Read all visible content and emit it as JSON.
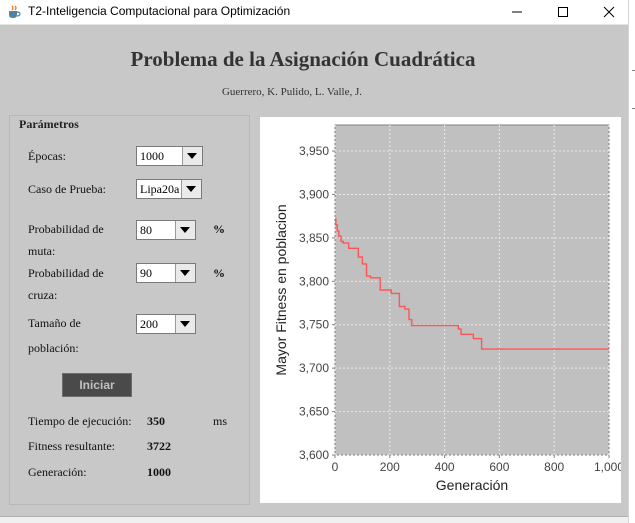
{
  "window": {
    "title": "T2-Inteligencia Computacional para Optimización",
    "icons": {
      "app": "java-cup-icon",
      "minimize": "minimize-icon",
      "maximize": "maximize-icon",
      "close": "close-icon"
    }
  },
  "header": {
    "title": "Problema de la Asignación Cuadrática",
    "authors": "Guerrero, K. Pulido, L. Valle, J."
  },
  "parameters": {
    "section_title": "Parámetros",
    "epochs": {
      "label": "Épocas:",
      "value": "1000"
    },
    "test_case": {
      "label": "Caso de Prueba:",
      "value": "Lipa20a"
    },
    "mutation": {
      "label_line1": "Probabilidad de",
      "label_line2": "muta:",
      "value": "80",
      "unit": "%"
    },
    "crossover": {
      "label_line1": "Probabilidad de",
      "label_line2": "cruza:",
      "value": "90",
      "unit": "%"
    },
    "population": {
      "label_line1": "Tamaño de",
      "label_line2": "población:",
      "value": "200"
    },
    "run_button": "Iniciar"
  },
  "results": {
    "time_label": "Tiempo de ejecución:",
    "time_value": "350",
    "time_unit": "ms",
    "fitness_label": "Fitness resultante:",
    "fitness_value": "3722",
    "generation_label": "Generación:",
    "generation_value": "1000"
  },
  "chart_data": {
    "type": "line",
    "xlabel": "Generación",
    "ylabel": "Mayor Fitness en poblacion",
    "xlim": [
      0,
      1000
    ],
    "ylim": [
      3600,
      3980
    ],
    "x_ticks": [
      0,
      200,
      400,
      600,
      800,
      1000
    ],
    "x_tick_labels": [
      "0",
      "200",
      "400",
      "600",
      "800",
      "1,000"
    ],
    "y_ticks": [
      3600,
      3650,
      3700,
      3750,
      3800,
      3850,
      3900,
      3950
    ],
    "y_tick_labels": [
      "3,600",
      "3,650",
      "3,700",
      "3,750",
      "3,800",
      "3,850",
      "3,900",
      "3,950"
    ],
    "grid": true,
    "colors": {
      "plot_background": "#c0c0c0",
      "series": "#ff5555",
      "grid": "#e8e8e8"
    },
    "series": [
      {
        "x": [
          0,
          3,
          8,
          14,
          22,
          30,
          50,
          85,
          100,
          115,
          130,
          165,
          185,
          205,
          235,
          255,
          270,
          280,
          440,
          450,
          460,
          505,
          535,
          1000
        ],
        "y": [
          3872,
          3865,
          3858,
          3852,
          3846,
          3844,
          3838,
          3828,
          3820,
          3806,
          3804,
          3790,
          3790,
          3786,
          3771,
          3768,
          3756,
          3749,
          3749,
          3745,
          3739,
          3734,
          3722,
          3722
        ]
      }
    ]
  }
}
